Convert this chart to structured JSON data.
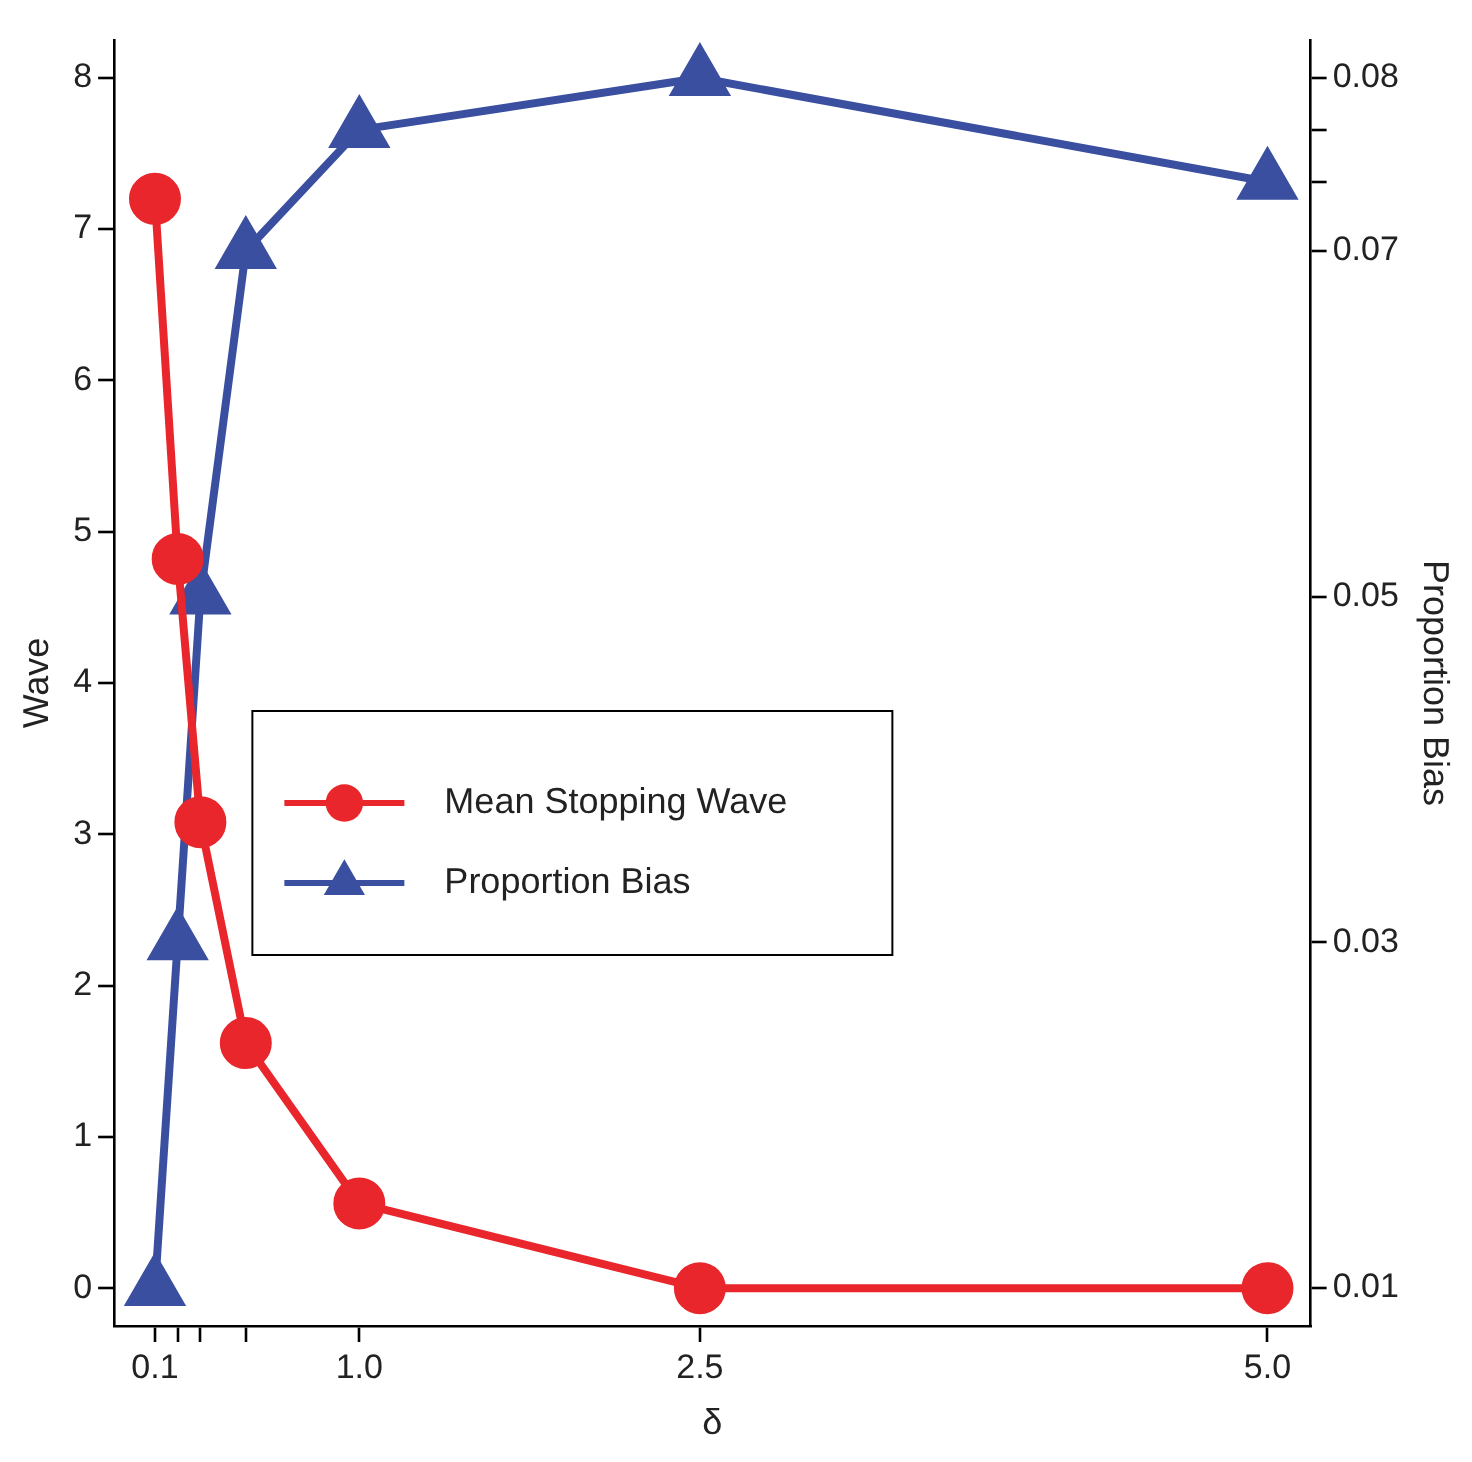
{
  "chart_data": {
    "type": "line",
    "xlabel": "δ",
    "ylabel": "Wave",
    "y2label": "Proportion Bias",
    "x": [
      0.1,
      0.2,
      0.3,
      0.5,
      1.0,
      2.5,
      5.0
    ],
    "series": [
      {
        "name": "Mean Stopping Wave",
        "color": "#e8262b",
        "marker": "circle",
        "values": [
          7.2,
          4.82,
          3.08,
          1.62,
          0.56,
          0,
          0
        ]
      },
      {
        "name": "Proportion Bias",
        "color": "#3a4fa0",
        "marker": "triangle",
        "axis": "y2",
        "values": [
          0.01,
          0.03,
          0.05,
          0.07,
          0.077,
          0.08,
          0.074
        ]
      }
    ],
    "xlim": [
      -0.08,
      5.19
    ],
    "xticks": [
      0.1,
      {
        "value": 0.2,
        "label": null
      },
      {
        "value": 0.3,
        "label": null
      },
      {
        "value": 0.5,
        "label": null
      },
      {
        "value": 1.0,
        "label": "1.0"
      },
      2.5,
      {
        "value": 5.0,
        "label": "5.0"
      }
    ],
    "ylim": [
      -0.25,
      8.25
    ],
    "yticks": [
      0,
      1,
      2,
      3,
      4,
      5,
      6,
      7,
      8
    ],
    "y2lim": [
      0.0078,
      0.0822
    ],
    "y2ticks": [
      0.01,
      0.03,
      0.05,
      0.07,
      {
        "value": 0.074,
        "label": null
      },
      {
        "value": 0.077,
        "label": null
      },
      0.08
    ],
    "grid": false,
    "legend": "center",
    "line_style": "solid"
  }
}
